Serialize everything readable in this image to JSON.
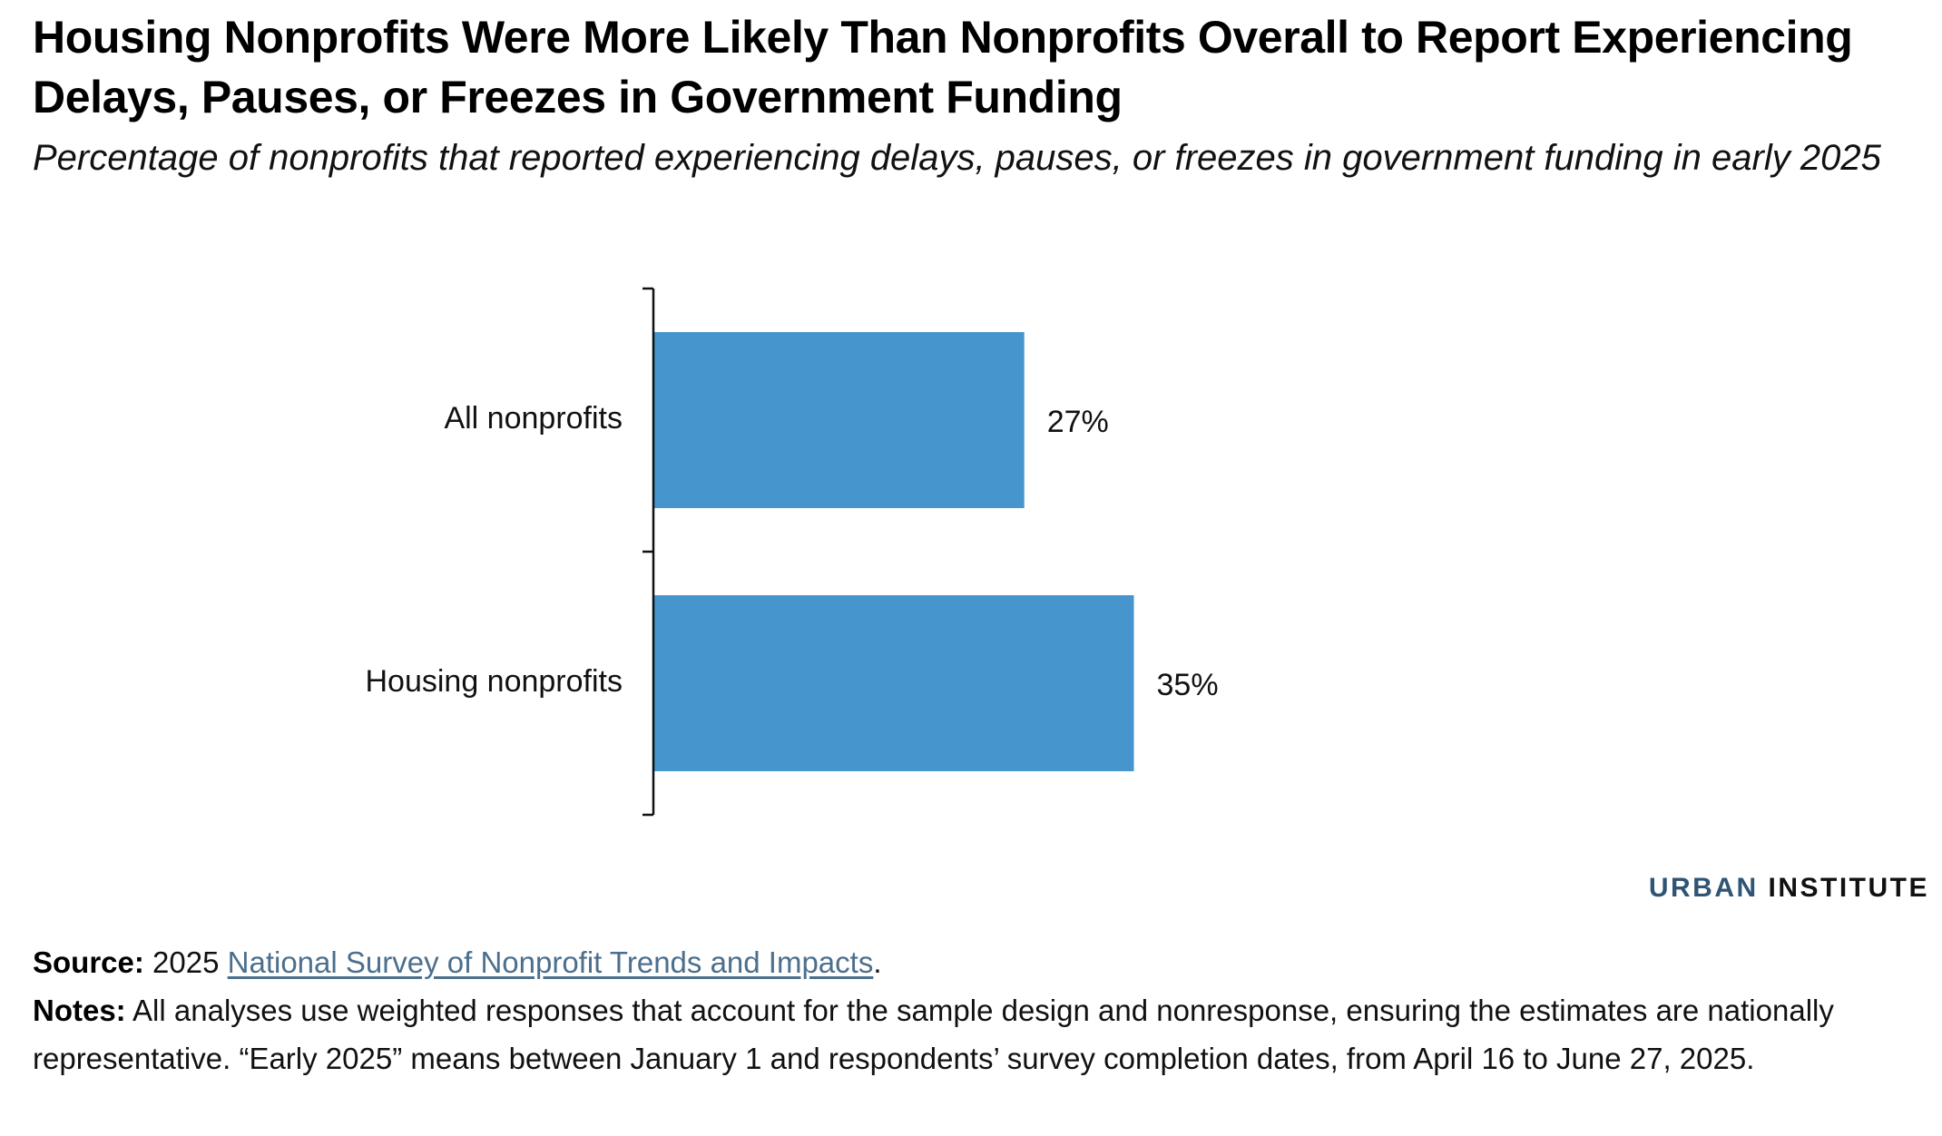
{
  "title": "Housing Nonprofits Were More Likely Than Nonprofits Overall to Report Experiencing Delays, Pauses, or Freezes in Government Funding",
  "subtitle": "Percentage of nonprofits that reported experiencing delays, pauses, or freezes in government funding in early 2025",
  "chart_data": {
    "type": "bar",
    "orientation": "horizontal",
    "categories": [
      "All nonprofits",
      "Housing nonprofits"
    ],
    "values": [
      27,
      35
    ],
    "data_labels": [
      "27%",
      "35%"
    ],
    "xlim": [
      0,
      100
    ],
    "xlabel": "",
    "ylabel": "",
    "grid": false,
    "legend": "none",
    "bar_color": "#4695cd"
  },
  "brand": {
    "part1": "URBAN",
    "part2": "INSTITUTE",
    "color_primary": "#2f5474"
  },
  "footer": {
    "source_label": "Source:",
    "source_prefix": "2025",
    "source_link": "National Survey of Nonprofit Trends and Impacts",
    "source_suffix": ".",
    "notes_label": "Notes:",
    "notes_text": "All analyses use weighted responses that account for the sample design and nonresponse, ensuring the estimates are nationally representative. “Early 2025” means between January 1 and respondents’ survey completion dates, from April 16 to June 27, 2025."
  }
}
